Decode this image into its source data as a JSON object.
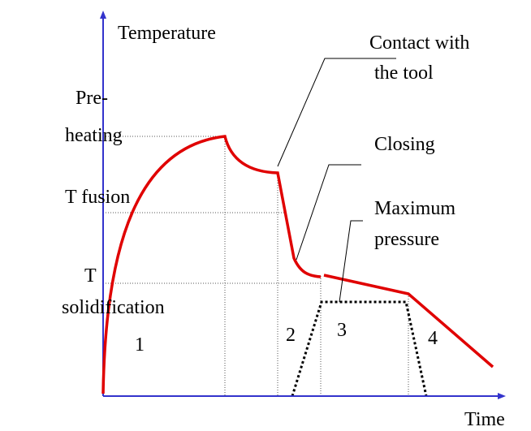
{
  "axes": {
    "y_label": "Temperature",
    "x_label": "Time"
  },
  "levels": [
    {
      "lines": [
        "Pre-",
        "heating"
      ]
    },
    {
      "lines": [
        "T fusion"
      ]
    },
    {
      "lines": [
        "T",
        "solidification"
      ]
    }
  ],
  "annotations": [
    {
      "lines": [
        "Contact with",
        "the tool"
      ]
    },
    {
      "lines": [
        "Closing"
      ]
    },
    {
      "lines": [
        "Maximum",
        "pressure"
      ]
    }
  ],
  "phases": [
    "1",
    "2",
    "3",
    "4"
  ]
}
